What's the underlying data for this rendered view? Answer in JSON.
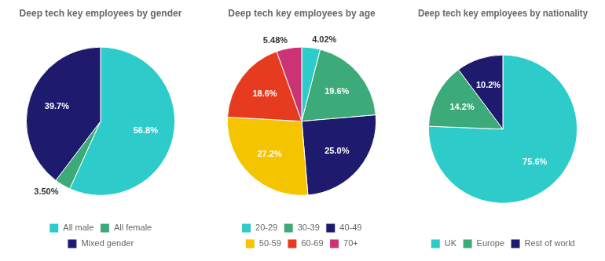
{
  "chart_data": [
    {
      "type": "pie",
      "title": "Deep tech key employees by gender",
      "categories": [
        "All male",
        "All female",
        "Mixed gender"
      ],
      "values": [
        56.8,
        3.5,
        39.7
      ],
      "value_labels": [
        "56.8%",
        "3.50%",
        "39.7%"
      ],
      "colors": [
        "#2ECBCB",
        "#3DAA7A",
        "#1E1B6E"
      ],
      "data_labels": true,
      "legend": "bottom"
    },
    {
      "type": "pie",
      "title": "Deep tech key employees by age",
      "categories": [
        "20-29",
        "30-39",
        "40-49",
        "50-59",
        "60-69",
        "70+"
      ],
      "values": [
        4.02,
        19.6,
        25.0,
        27.2,
        18.6,
        5.48
      ],
      "value_labels": [
        "4.02%",
        "19.6%",
        "25.0%",
        "27.2%",
        "18.6%",
        "5.48%"
      ],
      "colors": [
        "#2ECBCB",
        "#3DAA7A",
        "#1E1B6E",
        "#F5C400",
        "#E63B1F",
        "#CC3375"
      ],
      "data_labels": true,
      "legend": "bottom"
    },
    {
      "type": "pie",
      "title": "Deep tech key employees by nationality",
      "categories": [
        "UK",
        "Europe",
        "Rest of world"
      ],
      "values": [
        75.6,
        14.2,
        10.2
      ],
      "value_labels": [
        "75.6%",
        "14.2%",
        "10.2%"
      ],
      "colors": [
        "#2ECBCB",
        "#3DAA7A",
        "#1E1B6E"
      ],
      "data_labels": true,
      "legend": "bottom"
    }
  ]
}
